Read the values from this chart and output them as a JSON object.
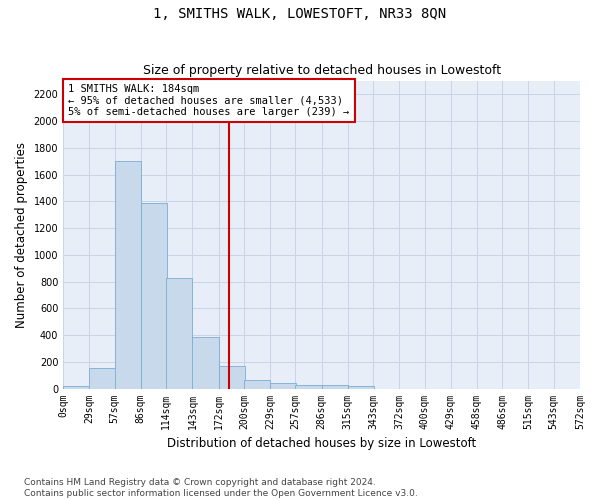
{
  "title": "1, SMITHS WALK, LOWESTOFT, NR33 8QN",
  "subtitle": "Size of property relative to detached houses in Lowestoft",
  "xlabel": "Distribution of detached houses by size in Lowestoft",
  "ylabel": "Number of detached properties",
  "bar_values": [
    20,
    155,
    1700,
    1390,
    830,
    385,
    165,
    65,
    40,
    30,
    30,
    20,
    0,
    0,
    0,
    0,
    0,
    0,
    0
  ],
  "bin_edges": [
    0,
    29,
    57,
    86,
    114,
    143,
    172,
    200,
    229,
    257,
    286,
    315,
    343,
    372,
    400,
    429,
    458,
    486,
    515,
    543
  ],
  "tick_labels": [
    "0sqm",
    "29sqm",
    "57sqm",
    "86sqm",
    "114sqm",
    "143sqm",
    "172sqm",
    "200sqm",
    "229sqm",
    "257sqm",
    "286sqm",
    "315sqm",
    "343sqm",
    "372sqm",
    "400sqm",
    "429sqm",
    "458sqm",
    "486sqm",
    "515sqm",
    "543sqm",
    "572sqm"
  ],
  "property_size": 184,
  "annotation_text": "1 SMITHS WALK: 184sqm\n← 95% of detached houses are smaller (4,533)\n5% of semi-detached houses are larger (239) →",
  "bar_color": "#c9d9ec",
  "bar_edge_color": "#7aadd4",
  "vline_color": "#cc0000",
  "annotation_box_edge": "#cc0000",
  "grid_color": "#c8d4e8",
  "bg_color": "#e8eef8",
  "ylim": [
    0,
    2300
  ],
  "yticks": [
    0,
    200,
    400,
    600,
    800,
    1000,
    1200,
    1400,
    1600,
    1800,
    2000,
    2200
  ],
  "title_fontsize": 10,
  "subtitle_fontsize": 9,
  "axis_label_fontsize": 8.5,
  "tick_fontsize": 7,
  "annotation_fontsize": 7.5,
  "footer_fontsize": 6.5,
  "footer": "Contains HM Land Registry data © Crown copyright and database right 2024.\nContains public sector information licensed under the Open Government Licence v3.0."
}
